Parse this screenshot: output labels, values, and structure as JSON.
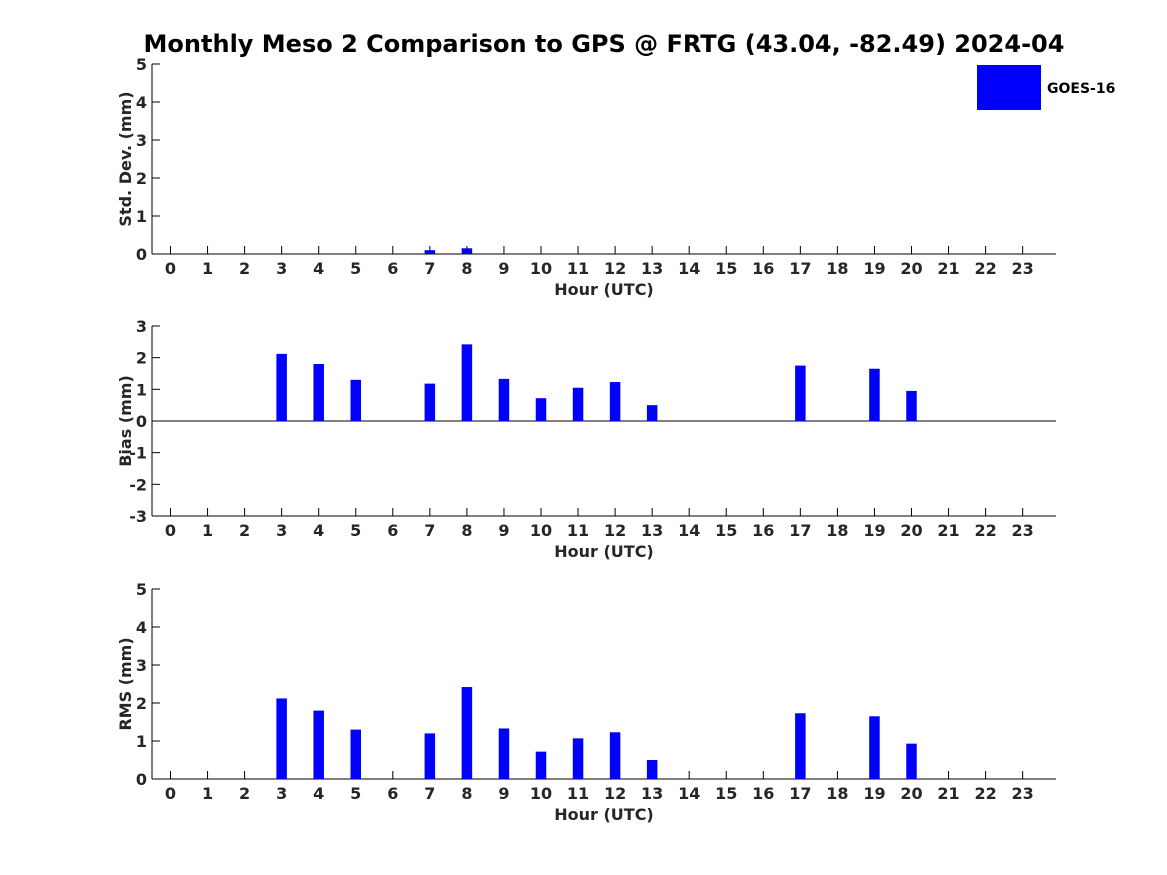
{
  "title": "Monthly Meso 2 Comparison to GPS @ FRTG (43.04, -82.49) 2024-04",
  "legend": {
    "label": "GOES-16",
    "color": "#0000ff",
    "placement": "top-right"
  },
  "bar_color": "#0000ff",
  "chart_data": [
    {
      "type": "bar",
      "id": "std",
      "xlabel": "Hour (UTC)",
      "ylabel": "Std. Dev. (mm)",
      "ylim": [
        0,
        5
      ],
      "yticks": [
        0,
        1,
        2,
        3,
        4,
        5
      ],
      "zero_line": false,
      "categories": [
        "0",
        "1",
        "2",
        "3",
        "4",
        "5",
        "6",
        "7",
        "8",
        "9",
        "10",
        "11",
        "12",
        "13",
        "14",
        "15",
        "16",
        "17",
        "18",
        "19",
        "20",
        "21",
        "22",
        "23"
      ],
      "series": [
        {
          "name": "GOES-16",
          "values": [
            null,
            null,
            null,
            null,
            null,
            null,
            null,
            0.1,
            0.15,
            null,
            null,
            null,
            null,
            null,
            null,
            null,
            null,
            null,
            null,
            null,
            null,
            null,
            null,
            null
          ]
        }
      ]
    },
    {
      "type": "bar",
      "id": "bias",
      "xlabel": "Hour (UTC)",
      "ylabel": "Bias (mm)",
      "ylim": [
        -3,
        3
      ],
      "yticks": [
        -3,
        -2,
        -1,
        0,
        1,
        2,
        3
      ],
      "zero_line": true,
      "categories": [
        "0",
        "1",
        "2",
        "3",
        "4",
        "5",
        "6",
        "7",
        "8",
        "9",
        "10",
        "11",
        "12",
        "13",
        "14",
        "15",
        "16",
        "17",
        "18",
        "19",
        "20",
        "21",
        "22",
        "23"
      ],
      "series": [
        {
          "name": "GOES-16",
          "values": [
            null,
            null,
            null,
            2.12,
            1.8,
            1.3,
            null,
            1.18,
            2.42,
            1.33,
            0.72,
            1.05,
            1.23,
            0.5,
            null,
            null,
            null,
            1.75,
            null,
            1.65,
            0.95,
            null,
            null,
            null
          ]
        }
      ]
    },
    {
      "type": "bar",
      "id": "rms",
      "xlabel": "Hour (UTC)",
      "ylabel": "RMS (mm)",
      "ylim": [
        0,
        5
      ],
      "yticks": [
        0,
        1,
        2,
        3,
        4,
        5
      ],
      "zero_line": false,
      "categories": [
        "0",
        "1",
        "2",
        "3",
        "4",
        "5",
        "6",
        "7",
        "8",
        "9",
        "10",
        "11",
        "12",
        "13",
        "14",
        "15",
        "16",
        "17",
        "18",
        "19",
        "20",
        "21",
        "22",
        "23"
      ],
      "series": [
        {
          "name": "GOES-16",
          "values": [
            null,
            null,
            null,
            2.12,
            1.8,
            1.3,
            null,
            1.2,
            2.42,
            1.33,
            0.72,
            1.07,
            1.23,
            0.5,
            null,
            null,
            null,
            1.73,
            null,
            1.65,
            0.93,
            null,
            null,
            null
          ]
        }
      ]
    }
  ]
}
